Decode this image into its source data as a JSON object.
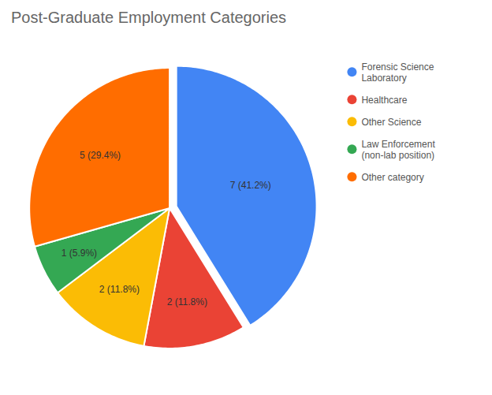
{
  "chart_data": {
    "type": "pie",
    "title": "Post-Graduate Employment Categories",
    "categories": [
      "Forensic Science\nLaboratory",
      "Healthcare",
      "Other Science",
      "Law Enforcement\n(non-lab position)",
      "Other category"
    ],
    "values": [
      7,
      2,
      2,
      1,
      5
    ],
    "value_labels": [
      "7 (41.2%)",
      "2 (11.8%)",
      "2 (11.8%)",
      "1 (5.9%)",
      "5 (29.4%)"
    ],
    "colors": [
      "#4285F4",
      "#EA4335",
      "#FBBC05",
      "#34A853",
      "#FF6D00"
    ],
    "data_labels": true,
    "legend": "right"
  }
}
